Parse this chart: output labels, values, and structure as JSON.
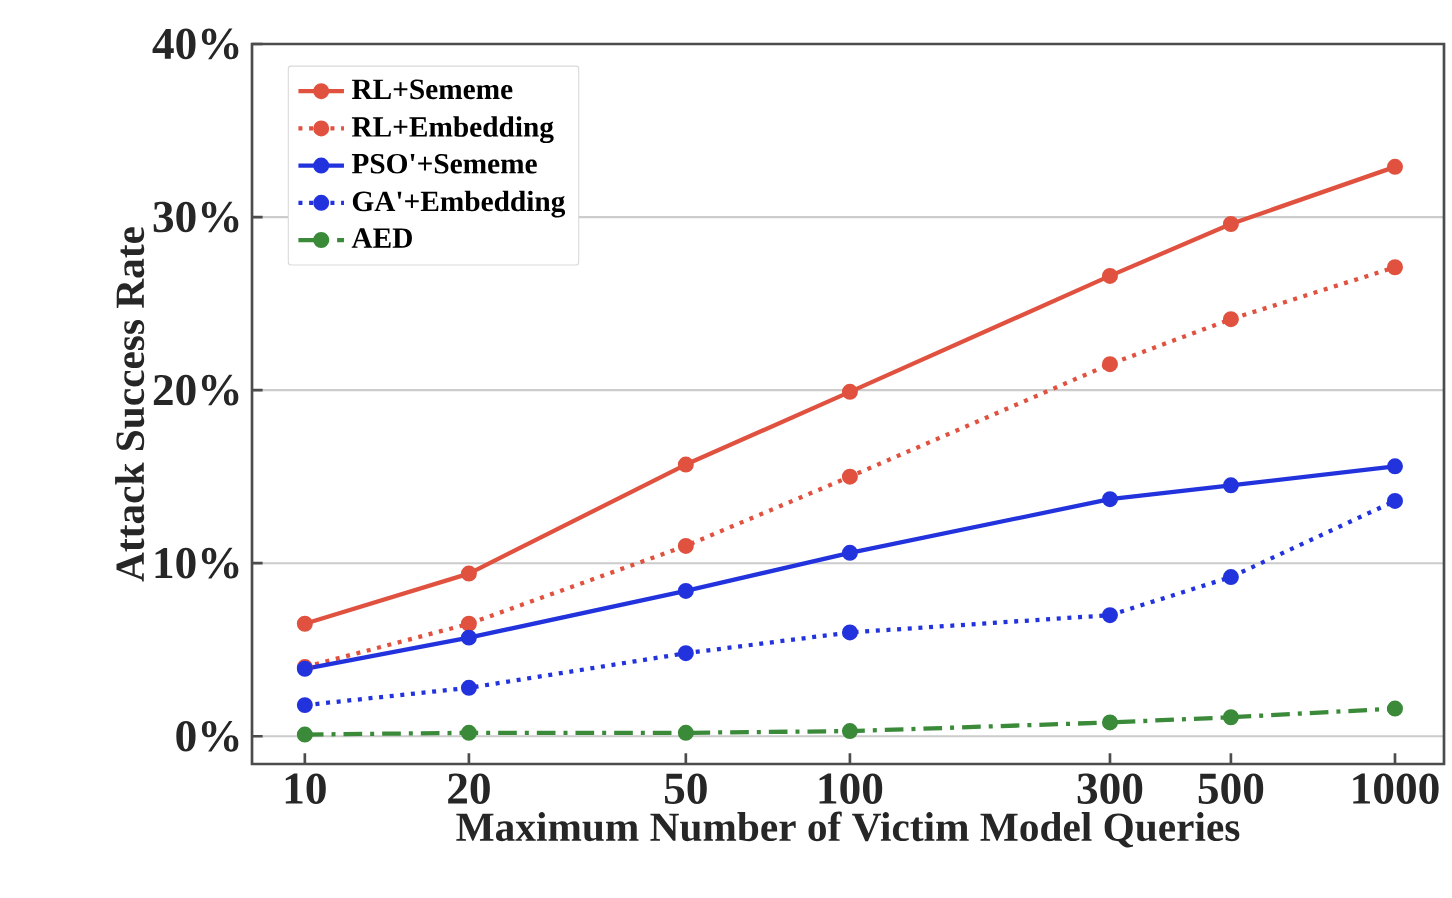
{
  "chart_data": {
    "type": "line",
    "xlabel": "Maximum Number of Victim Model Queries",
    "ylabel": "Attack Success Rate",
    "x": [
      10,
      20,
      50,
      100,
      300,
      500,
      1000
    ],
    "series": [
      {
        "name": "RL+Sememe",
        "color": "#e0523f",
        "line_style": "solid",
        "values": [
          6.5,
          9.4,
          15.7,
          19.9,
          26.6,
          29.6,
          32.9
        ]
      },
      {
        "name": "RL+Embedding",
        "color": "#e0523f",
        "line_style": "dotted",
        "values": [
          4.0,
          6.5,
          11.0,
          15.0,
          21.5,
          24.1,
          27.1
        ]
      },
      {
        "name": "PSO'+Sememe",
        "color": "#2233dd",
        "line_style": "solid",
        "values": [
          3.9,
          5.7,
          8.4,
          10.6,
          13.7,
          14.5,
          15.6
        ]
      },
      {
        "name": "GA'+Embedding",
        "color": "#2233dd",
        "line_style": "dotted",
        "values": [
          1.8,
          2.8,
          4.8,
          6.0,
          7.0,
          9.2,
          13.6
        ]
      },
      {
        "name": "AED",
        "color": "#3a8a3a",
        "line_style": "dashed",
        "values": [
          0.1,
          0.2,
          0.2,
          0.3,
          0.8,
          1.1,
          1.6
        ]
      }
    ],
    "log": "x",
    "xlim": [
      8,
      1230
    ],
    "ylim": [
      -1.6,
      40
    ],
    "xticks": [
      10,
      20,
      50,
      100,
      300,
      500,
      1000
    ],
    "yticks": [
      {
        "value": 0,
        "label": "0%"
      },
      {
        "value": 10,
        "label": "10%"
      },
      {
        "value": 20,
        "label": "20%"
      },
      {
        "value": 30,
        "label": "30%"
      },
      {
        "value": 40,
        "label": "40%"
      }
    ],
    "grid": "y",
    "legend": "top left",
    "marker": "circle"
  }
}
